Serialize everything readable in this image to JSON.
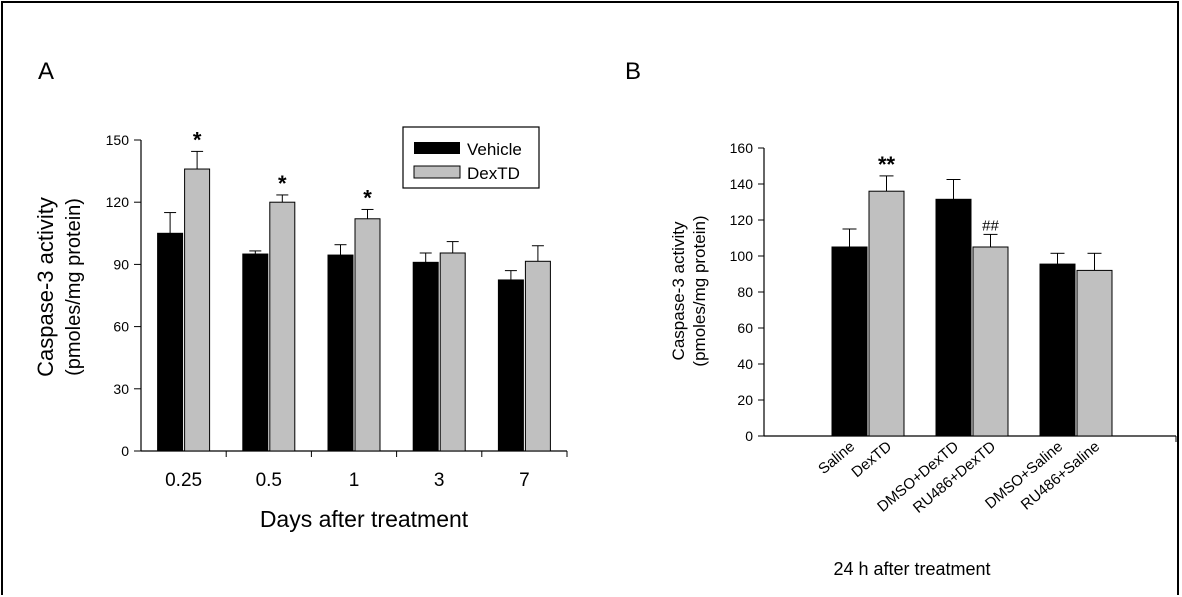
{
  "panels": {
    "a": {
      "label": "A"
    },
    "b": {
      "label": "B"
    }
  },
  "colors": {
    "vehicle": "#000000",
    "dextd": "#c0c0c0",
    "axis": "#000000"
  },
  "chart_data": [
    {
      "type": "bar",
      "panel": "A",
      "categories": [
        "0.25",
        "0.5",
        "1",
        "3",
        "7"
      ],
      "series": [
        {
          "name": "Vehicle",
          "values": [
            105,
            95,
            94.5,
            91,
            82.5
          ],
          "errors": [
            10,
            1.5,
            5,
            4.5,
            4.5
          ],
          "color": "#000000"
        },
        {
          "name": "DexTD",
          "values": [
            136,
            120,
            112,
            95.5,
            91.5
          ],
          "errors": [
            8.5,
            3.5,
            4.5,
            5.5,
            7.5
          ],
          "color": "#c0c0c0"
        }
      ],
      "annotations": [
        {
          "category": "0.25",
          "series": "DexTD",
          "text": "*"
        },
        {
          "category": "0.5",
          "series": "DexTD",
          "text": "*"
        },
        {
          "category": "1",
          "series": "DexTD",
          "text": "*"
        }
      ],
      "xlabel": "Days after treatment",
      "ylabel": [
        "Caspase-3 activity",
        "(pmoles/mg protein)"
      ],
      "ylim": [
        0,
        150
      ],
      "yticks": [
        0,
        30,
        60,
        90,
        120,
        150
      ],
      "legend": "top-right",
      "grid": false
    },
    {
      "type": "bar",
      "panel": "B",
      "categories": [
        "Saline",
        "DexTD",
        "DMSO+DexTD",
        "RU486+DexTD",
        "DMSO+Saline",
        "RU486+Saline"
      ],
      "values": [
        105,
        136,
        131.5,
        105,
        95.5,
        92
      ],
      "errors": [
        10,
        8.5,
        11,
        7,
        6,
        9.5
      ],
      "colors": [
        "#000000",
        "#c0c0c0",
        "#000000",
        "#c0c0c0",
        "#000000",
        "#c0c0c0"
      ],
      "annotations": [
        {
          "category": "DexTD",
          "text": "**"
        },
        {
          "category": "RU486+DexTD",
          "text": "##"
        }
      ],
      "xlabel": "24 h after treatment",
      "ylabel": [
        "Caspase-3 activity",
        "(pmoles/mg protein)"
      ],
      "ylim": [
        0,
        160
      ],
      "yticks": [
        0,
        20,
        40,
        60,
        80,
        100,
        120,
        140,
        160
      ],
      "grid": false
    }
  ]
}
